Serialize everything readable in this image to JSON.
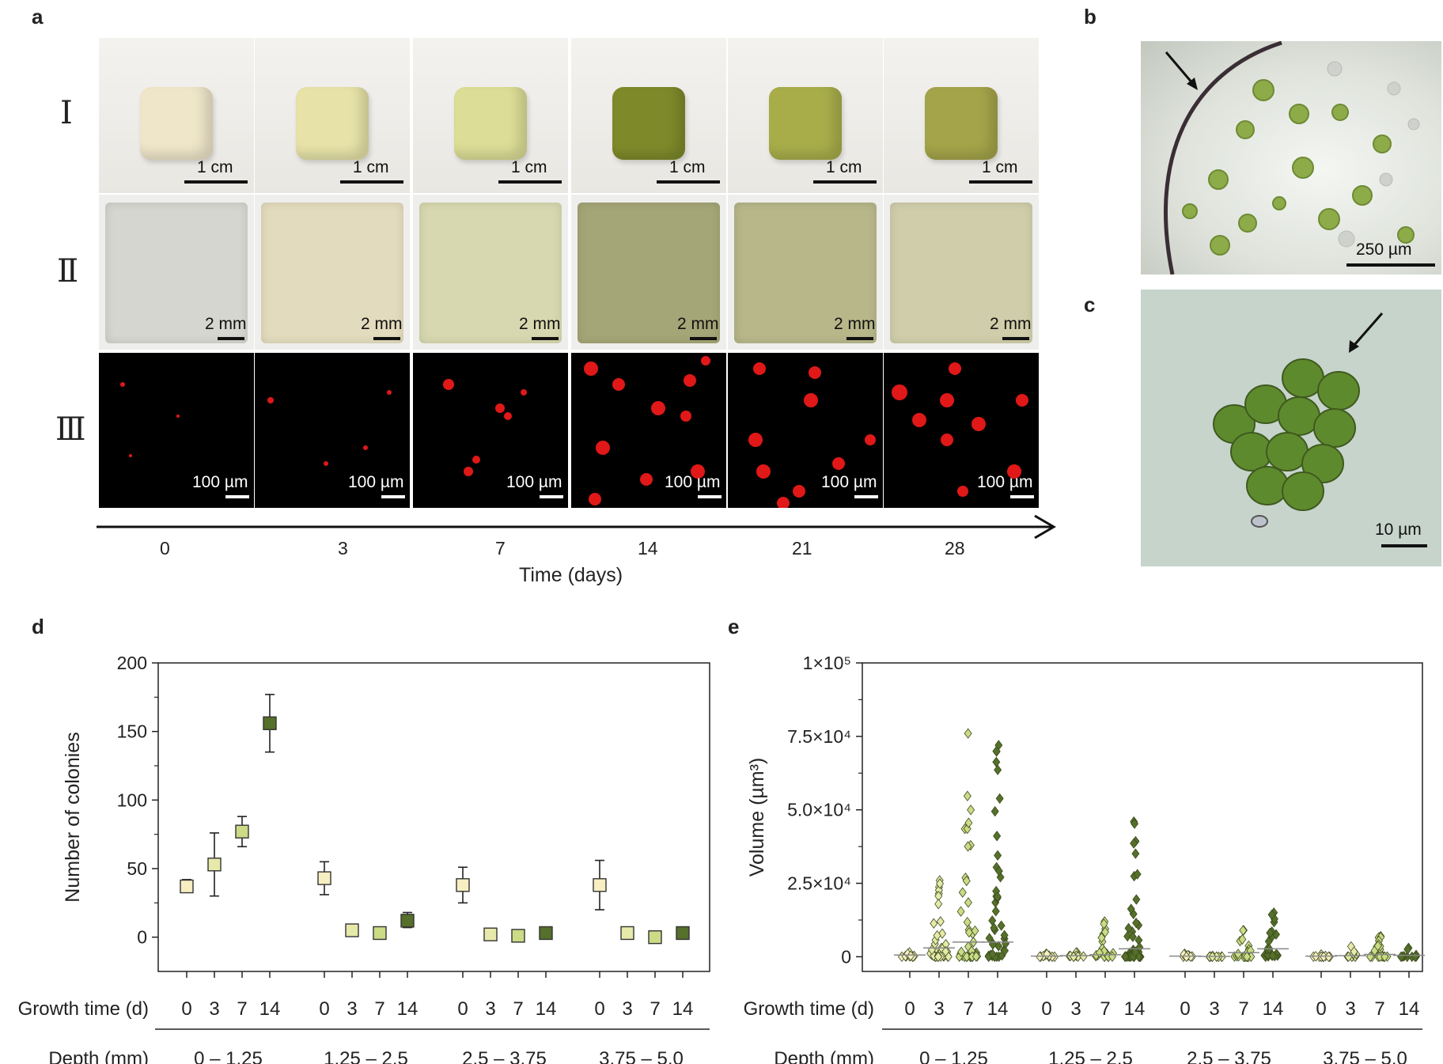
{
  "panels": {
    "a": "a",
    "b": "b",
    "c": "c",
    "d": "d",
    "e": "e"
  },
  "panel_a": {
    "rows": [
      "Ⅰ",
      "Ⅱ",
      "Ⅲ"
    ],
    "row_I_scale": "1 cm",
    "row_II_scale": "2 mm",
    "row_III_scale": "100 µm",
    "times": [
      "0",
      "3",
      "7",
      "14",
      "21",
      "28"
    ],
    "xlabel": "Time (days)",
    "row_I_colors": [
      "#efe6c9",
      "#e6e2a8",
      "#dcdd96",
      "#7e8a2a",
      "#a8ad4a",
      "#a4a44a"
    ],
    "row_II_colors": [
      "#d5d6cf",
      "#e3dbbd",
      "#d8d8b0",
      "#a5a677",
      "#b7b78a",
      "#d0ceaa"
    ]
  },
  "panel_b": {
    "scale": "250 µm"
  },
  "panel_c": {
    "scale": "10 µm"
  },
  "chart_data": [
    {
      "type": "scatter",
      "panel": "d",
      "ylabel": "Number of colonies",
      "ylim": [
        -25,
        200
      ],
      "yticks": [
        "200",
        "150",
        "100",
        "50",
        "0"
      ],
      "growth_label": "Growth time (d)",
      "depth_label": "Depth (mm)",
      "growth_times": [
        "0",
        "3",
        "7",
        "14"
      ],
      "depth_groups": [
        "0 – 1.25",
        "1.25 – 2.5",
        "2.5 – 3.75",
        "3.75 – 5.0"
      ],
      "time_colors": [
        "#f7eec2",
        "#e6e9a9",
        "#cbdb86",
        "#55702a"
      ],
      "series": [
        {
          "depth": "0 – 1.25",
          "mean": [
            37,
            53,
            77,
            156
          ],
          "low": [
            33,
            30,
            66,
            135
          ],
          "high": [
            42,
            76,
            88,
            177
          ]
        },
        {
          "depth": "1.25 – 2.5",
          "mean": [
            43,
            5,
            3,
            12
          ],
          "low": [
            31,
            2,
            1,
            7
          ],
          "high": [
            55,
            8,
            5,
            18
          ]
        },
        {
          "depth": "2.5 – 3.75",
          "mean": [
            38,
            2,
            1,
            3
          ],
          "low": [
            25,
            0,
            -2,
            1
          ],
          "high": [
            51,
            4,
            4,
            5
          ]
        },
        {
          "depth": "3.75 – 5.0",
          "mean": [
            38,
            3,
            0,
            3
          ],
          "low": [
            20,
            0,
            -3,
            2
          ],
          "high": [
            56,
            6,
            3,
            4
          ]
        }
      ]
    },
    {
      "type": "scatter",
      "panel": "e",
      "ylabel": "Volume (µm³)",
      "ylim": [
        -5000,
        100000
      ],
      "yticks": [
        "1×10⁵",
        "7.5×10⁴",
        "5.0×10⁴",
        "2.5×10⁴",
        "0"
      ],
      "growth_label": "Growth time (d)",
      "depth_label": "Depth (mm)",
      "growth_times": [
        "0",
        "3",
        "7",
        "14"
      ],
      "depth_groups": [
        "0 – 1.25",
        "1.25 – 2.5",
        "2.5 – 3.75",
        "3.75 – 5.0"
      ],
      "time_colors": [
        "#f7eec2",
        "#e6e9a9",
        "#cbdb86",
        "#55702a"
      ],
      "groups": [
        {
          "depth": "0 – 1.25",
          "max": [
            1500,
            26000,
            76000,
            72000
          ],
          "median": [
            600,
            3000,
            5000,
            5000
          ]
        },
        {
          "depth": "1.25 – 2.5",
          "max": [
            1000,
            1500,
            12000,
            46000
          ],
          "median": [
            200,
            400,
            700,
            2700
          ]
        },
        {
          "depth": "2.5 – 3.75",
          "max": [
            1000,
            300,
            9000,
            15000
          ],
          "median": [
            200,
            100,
            1400,
            2700
          ]
        },
        {
          "depth": "3.75 – 5.0",
          "max": [
            800,
            3500,
            7000,
            3000
          ],
          "median": [
            200,
            400,
            800,
            500
          ]
        }
      ]
    }
  ]
}
